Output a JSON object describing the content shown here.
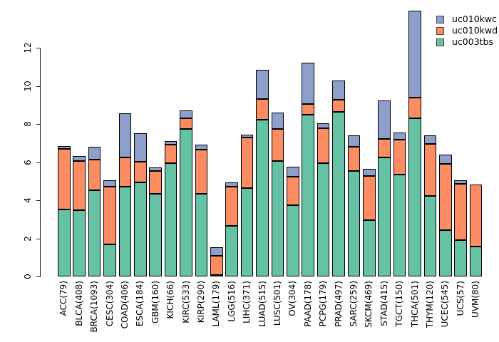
{
  "chart_data": {
    "type": "bar",
    "stacked": true,
    "title": "",
    "xlabel": "",
    "ylabel": "",
    "ylim": [
      0,
      14.1
    ],
    "yticks": [
      0,
      2,
      4,
      6,
      8,
      10,
      12
    ],
    "grid": false,
    "legend_position": "top-right",
    "categories": [
      "ACC(79)",
      "BLCA(408)",
      "BRCA(1093)",
      "CESC(304)",
      "COAD(406)",
      "ESCA(184)",
      "GBM(160)",
      "KICH(66)",
      "KIRC(533)",
      "KIRP(290)",
      "LAML(179)",
      "LGG(516)",
      "LIHC(371)",
      "LUAD(515)",
      "LUSC(501)",
      "OV(304)",
      "PAAD(178)",
      "PCPG(179)",
      "PRAD(497)",
      "SARC(259)",
      "SKCM(469)",
      "STAD(415)",
      "TGCT(150)",
      "THCA(501)",
      "THYM(120)",
      "UCEC(545)",
      "UCS(57)",
      "UVM(80)"
    ],
    "series": [
      {
        "name": "uc003tbs",
        "color": "#66C2A5",
        "values": [
          3.52,
          3.5,
          4.55,
          1.68,
          4.74,
          4.93,
          4.36,
          5.95,
          7.74,
          4.33,
          0.08,
          2.67,
          4.64,
          8.24,
          6.08,
          3.76,
          8.49,
          5.97,
          8.64,
          5.55,
          2.95,
          6.26,
          5.37,
          8.31,
          4.24,
          2.45,
          1.9,
          1.58
        ]
      },
      {
        "name": "uc010kwd",
        "color": "#FC8D62",
        "values": [
          3.17,
          2.56,
          1.6,
          3.04,
          1.5,
          1.1,
          1.19,
          0.98,
          0.56,
          2.35,
          1.03,
          2.07,
          2.66,
          1.07,
          1.66,
          1.48,
          0.57,
          1.83,
          0.63,
          1.25,
          2.32,
          0.98,
          1.81,
          1.1,
          2.71,
          3.48,
          2.97,
          3.25
        ]
      },
      {
        "name": "uc010kwc",
        "color": "#8DA0CB",
        "values": [
          0.16,
          0.28,
          0.66,
          0.33,
          2.34,
          1.49,
          0.19,
          0.19,
          0.41,
          0.25,
          0.44,
          0.19,
          0.15,
          1.56,
          0.88,
          0.53,
          2.15,
          0.23,
          1.04,
          0.63,
          0.37,
          2.0,
          0.4,
          4.56,
          0.48,
          0.46,
          0.18,
          0
        ]
      }
    ],
    "legend": [
      {
        "label": "uc010kwc",
        "color": "#8DA0CB"
      },
      {
        "label": "uc010kwd",
        "color": "#FC8D62"
      },
      {
        "label": "uc003tbs",
        "color": "#66C2A5"
      }
    ],
    "axis_color": "#000000",
    "bar_border_color": "#000000"
  }
}
